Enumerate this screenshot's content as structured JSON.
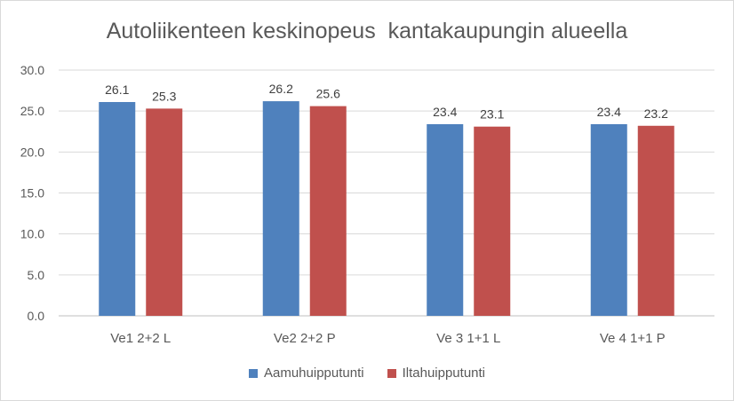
{
  "chart_data": {
    "type": "bar",
    "title": "Autoliikenteen keskinopeus  kantakaupungin alueella",
    "xlabel": "",
    "ylabel": "",
    "categories": [
      "Ve1 2+2 L",
      "Ve2 2+2 P",
      "Ve 3 1+1 L",
      "Ve 4 1+1 P"
    ],
    "series": [
      {
        "name": "Aamuhuipputunti",
        "color": "#4f81bd",
        "values": [
          26.1,
          26.2,
          23.4,
          23.4
        ]
      },
      {
        "name": "Iltahuipputunti",
        "color": "#c0504d",
        "values": [
          25.3,
          25.6,
          23.1,
          23.2
        ]
      }
    ],
    "ylim": [
      0,
      30
    ],
    "yticks": [
      "0.0",
      "5.0",
      "10.0",
      "15.0",
      "20.0",
      "25.0",
      "30.0"
    ],
    "grid": true,
    "legend_position": "bottom",
    "data_labels": true
  }
}
